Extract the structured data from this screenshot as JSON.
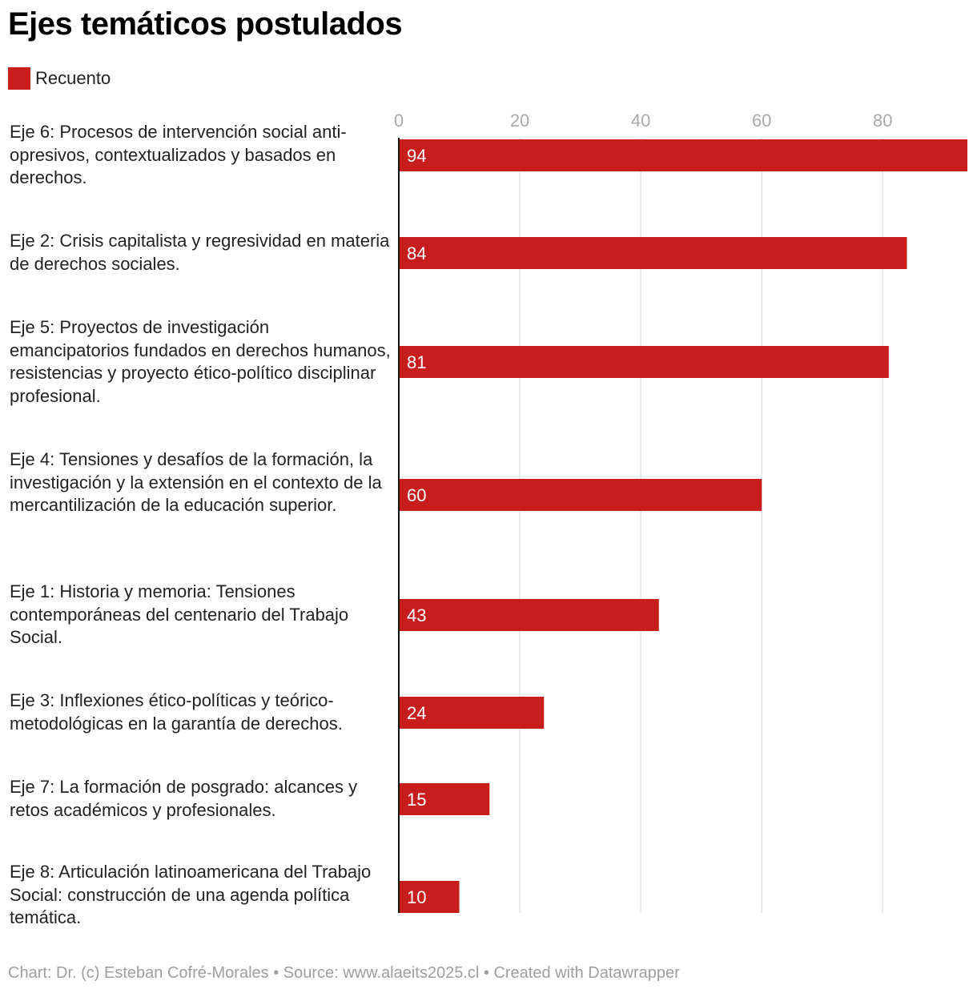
{
  "chart_data": {
    "type": "bar",
    "orientation": "horizontal",
    "title": "Ejes temáticos postulados",
    "legend": [
      {
        "label": "Recuento",
        "color": "#c71e1d"
      }
    ],
    "legend_position": "top-left",
    "categories": [
      "Eje 6: Procesos de intervención social anti-opresivos, contextualizados y basados en derechos.",
      "Eje 2: Crisis capitalista y regresividad en materia de derechos sociales.",
      "Eje 5: Proyectos de investigación emancipatorios fundados en derechos humanos, resistencias y proyecto ético-político disciplinar profesional.",
      "Eje 4: Tensiones y desafíos de la formación, la investigación y la extensión en el contexto de la mercantilización de la educación superior.",
      "Eje 1: Historia y memoria: Tensiones contemporáneas del centenario del Trabajo Social.",
      "Eje 3: Inflexiones ético-políticas y teórico-metodológicas en la garantía de derechos.",
      "Eje 7: La formación de posgrado: alcances y retos académicos y profesionales.",
      "Eje 8: Articulación latinoamericana del Trabajo Social: construcción de una agenda política temática."
    ],
    "series": [
      {
        "name": "Recuento",
        "values": [
          94,
          84,
          81,
          60,
          43,
          24,
          15,
          10
        ]
      }
    ],
    "xlim": [
      0,
      94
    ],
    "ticks": [
      0,
      20,
      40,
      60,
      80
    ],
    "grid": true,
    "xlabel": "",
    "ylabel": ""
  },
  "colors": {
    "bar": "#c71e1d",
    "grid": "#e3e3e3",
    "tick": "#a9a9a9",
    "axis": "#111111"
  },
  "footer": "Chart: Dr. (c) Esteban Cofré-Morales • Source: www.alaeits2025.cl • Created with Datawrapper"
}
